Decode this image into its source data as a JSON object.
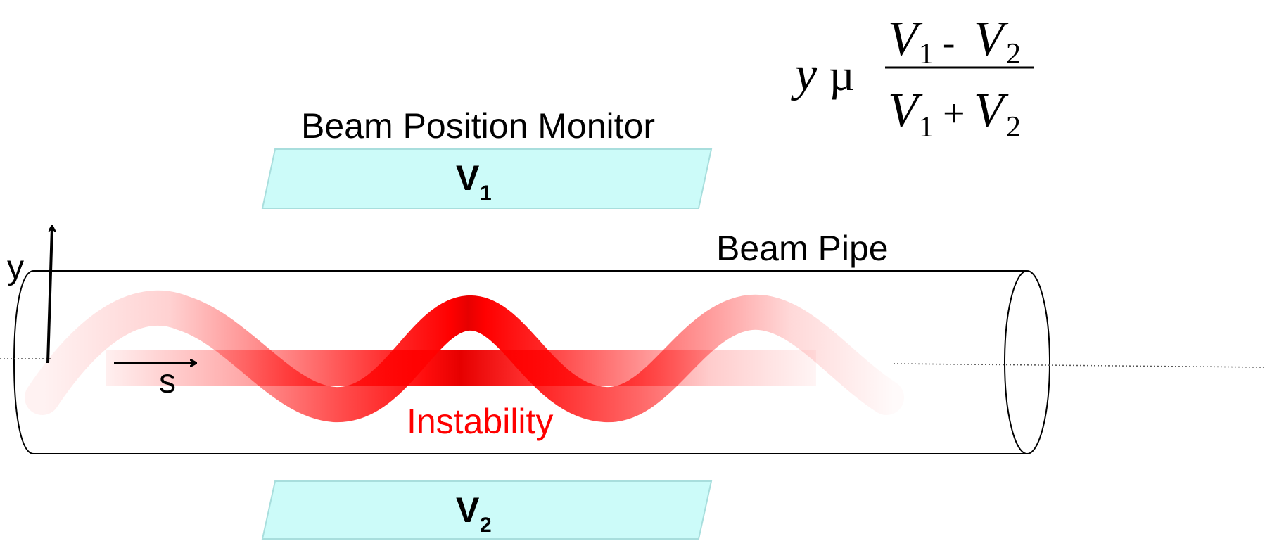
{
  "formula": {
    "lhs": "y",
    "relation": "µ",
    "numerator": {
      "v1": "V",
      "v1_sub": "1",
      "op": "-",
      "v2": "V",
      "v2_sub": "2"
    },
    "denominator": {
      "v1": "V",
      "v1_sub": "1",
      "op": "+",
      "v2": "V",
      "v2_sub": "2"
    }
  },
  "bpm": {
    "title": "Beam Position Monitor",
    "top_plate": {
      "label": "V",
      "sub": "1"
    },
    "bottom_plate": {
      "label": "V",
      "sub": "2"
    },
    "plate_color": "#ccfbf9"
  },
  "pipe": {
    "label": "Beam Pipe"
  },
  "axes": {
    "y_label": "y",
    "s_label": "s"
  },
  "beam": {
    "label": "Instability",
    "color": "#ff0000"
  }
}
